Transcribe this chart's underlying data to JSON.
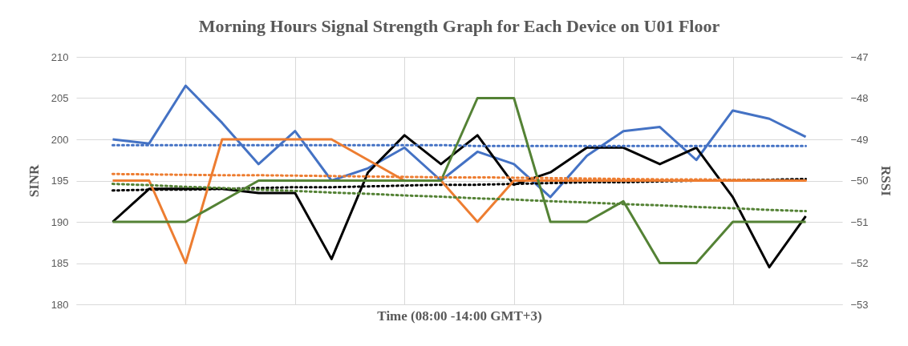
{
  "chart_data": {
    "type": "line",
    "title": "Morning Hours Signal Strength Graph for Each Device on U01 Floor",
    "xlabel": "Time (08:00 -14:00 GMT+3)",
    "ylabel": "SINR",
    "y2label": "RSSI",
    "categories": [
      null,
      null,
      null,
      null,
      null,
      null,
      null,
      null,
      null,
      null,
      null,
      null,
      null,
      null,
      null,
      null,
      null,
      null,
      null,
      null
    ],
    "series": [
      {
        "color": "#4472c4",
        "values": [
          200,
          199.5,
          206.5,
          202,
          197,
          201,
          195,
          196.5,
          199,
          195,
          198.5,
          197,
          193,
          198,
          201,
          201.5,
          197.5,
          203.5,
          202.5,
          200.3
        ]
      },
      {
        "color": "#ed7d31",
        "axis": "y2",
        "values": [
          -50,
          -50,
          -52,
          -49,
          -49,
          -49,
          -49,
          -49.5,
          -50,
          -50,
          -51,
          -50,
          -50,
          -50,
          -50,
          -50,
          -50,
          -50,
          -50,
          -50
        ]
      },
      {
        "color": "#548235",
        "axis": "y2",
        "values": [
          -51,
          -51,
          -51,
          -50.5,
          -50,
          -50,
          -50,
          -50,
          -50,
          -50,
          -48,
          -48,
          -51,
          -51,
          -50.5,
          -52,
          -52,
          -51,
          -51,
          -51
        ]
      },
      {
        "color": "#000000",
        "values": [
          190,
          194,
          194,
          194,
          193.5,
          193.5,
          185.5,
          196,
          200.5,
          197,
          200.5,
          194.5,
          196,
          199,
          199,
          197,
          199,
          193,
          184.5,
          190.7
        ]
      },
      {
        "color": "#4472c4",
        "line_style": "dotted",
        "values": [
          199.3,
          199.3,
          199.3,
          199.3,
          199.3,
          199.3,
          199.3,
          199.3,
          199.3,
          199.3,
          199.2,
          199.2,
          199.2,
          199.2,
          199.2,
          199.2,
          199.2,
          199.2,
          199.2,
          199.2
        ]
      },
      {
        "color": "#ed7d31",
        "axis": "y2",
        "line_style": "dotted",
        "values": [
          -49.84,
          -49.85,
          -49.86,
          -49.87,
          -49.87,
          -49.88,
          -49.89,
          -49.9,
          -49.91,
          -49.92,
          -49.92,
          -49.93,
          -49.94,
          -49.95,
          -49.96,
          -49.97,
          -49.97,
          -49.98,
          -49.99,
          -50
        ]
      },
      {
        "color": "#548235",
        "axis": "y2",
        "line_style": "dotted",
        "values": [
          -50.08,
          -50.11,
          -50.15,
          -50.18,
          -50.22,
          -50.25,
          -50.29,
          -50.32,
          -50.36,
          -50.39,
          -50.43,
          -50.46,
          -50.5,
          -50.53,
          -50.57,
          -50.6,
          -50.64,
          -50.67,
          -50.71,
          -50.74
        ]
      },
      {
        "color": "#000000",
        "line_style": "dotted",
        "values": [
          193.8,
          193.9,
          193.9,
          194,
          194.1,
          194.2,
          194.2,
          194.3,
          194.4,
          194.5,
          194.5,
          194.6,
          194.7,
          194.8,
          194.8,
          194.9,
          195,
          195.1,
          195.1,
          195.2
        ]
      }
    ],
    "ylim": [
      180,
      210
    ],
    "yticks": [
      180,
      185,
      190,
      195,
      200,
      205,
      210
    ],
    "y2lim": [
      -53,
      -47
    ],
    "y2ticks": [
      -53,
      -52,
      -51,
      -50,
      -49,
      -48,
      -47
    ],
    "grid": true,
    "tick_labels": "y"
  }
}
